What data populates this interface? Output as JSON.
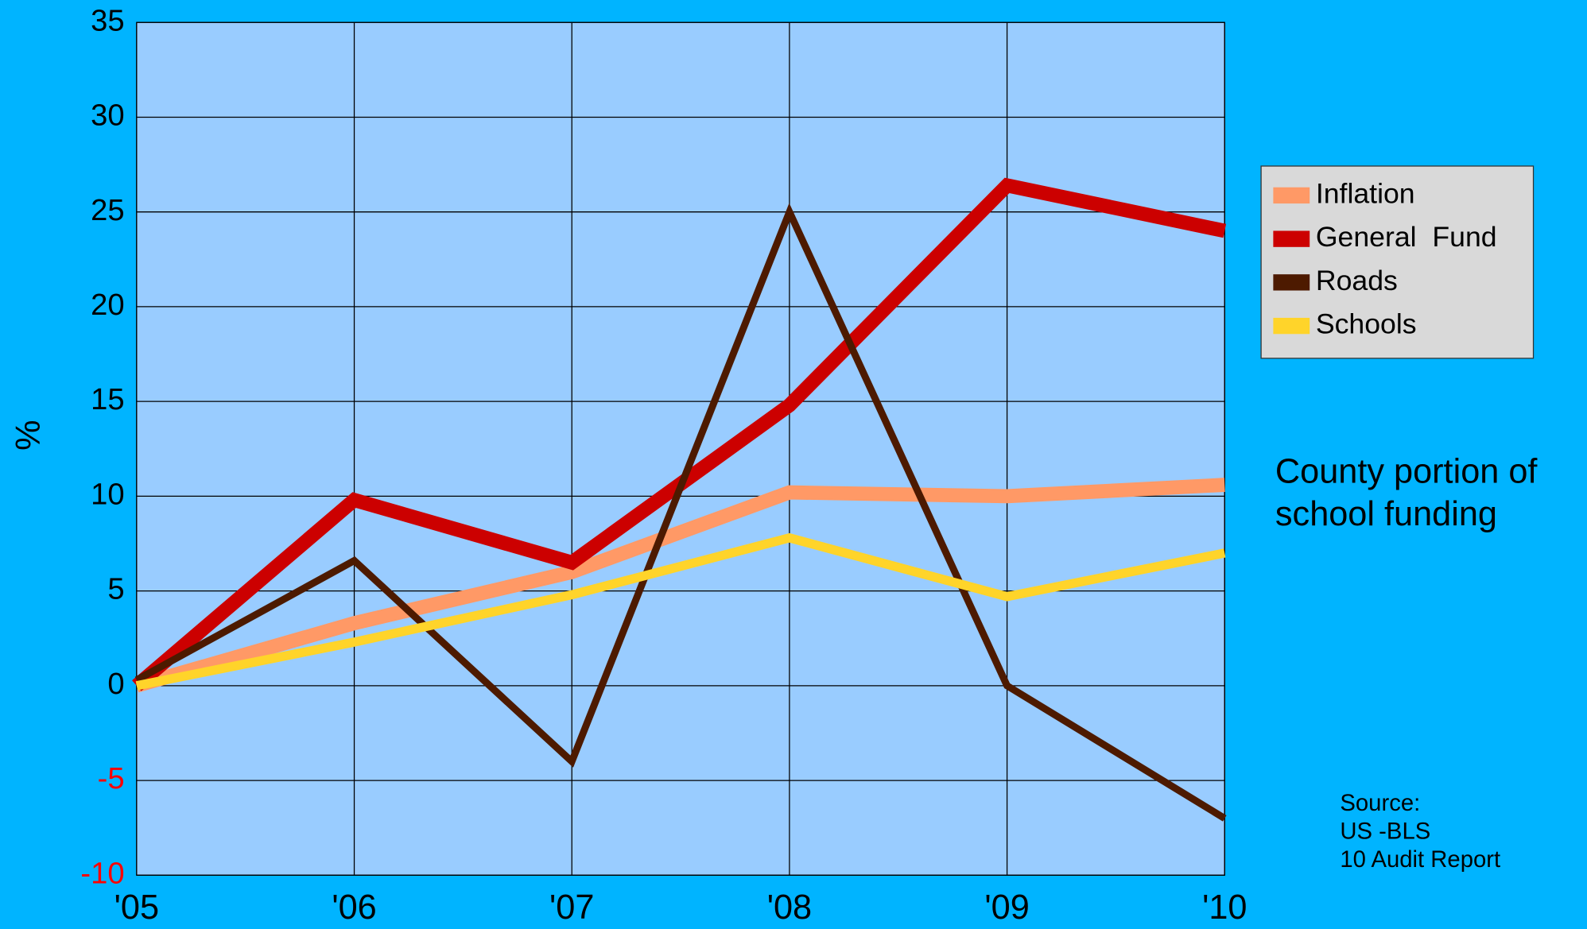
{
  "chart_data": {
    "type": "line",
    "y_label": "%",
    "categories": [
      "'05",
      "'06",
      "'07",
      "'08",
      "'09",
      "'10"
    ],
    "series": [
      {
        "name": "Inflation",
        "color": "#ff9966",
        "values": [
          0,
          3.3,
          6,
          10.2,
          10,
          10.6
        ]
      },
      {
        "name": "General  Fund",
        "color": "#cc0000",
        "values": [
          0,
          9.8,
          6.5,
          14.8,
          26.4,
          24
        ]
      },
      {
        "name": "Roads",
        "color": "#4d1a00",
        "values": [
          0.3,
          6.6,
          -4,
          25,
          0,
          -7
        ]
      },
      {
        "name": "Schools",
        "color": "#ffd42a",
        "values": [
          0,
          2.3,
          4.8,
          7.8,
          4.7,
          7
        ]
      }
    ],
    "ylim": [
      -10,
      35
    ],
    "yticks": [
      -10,
      -5,
      0,
      5,
      10,
      15,
      20,
      25,
      30,
      35
    ],
    "negative_tick_color": "#ff0000",
    "grid": true,
    "legend": "right",
    "annotation": [
      "County portion of",
      "school funding"
    ],
    "source": [
      "Source:",
      "US -BLS",
      "10 Audit Report"
    ]
  }
}
